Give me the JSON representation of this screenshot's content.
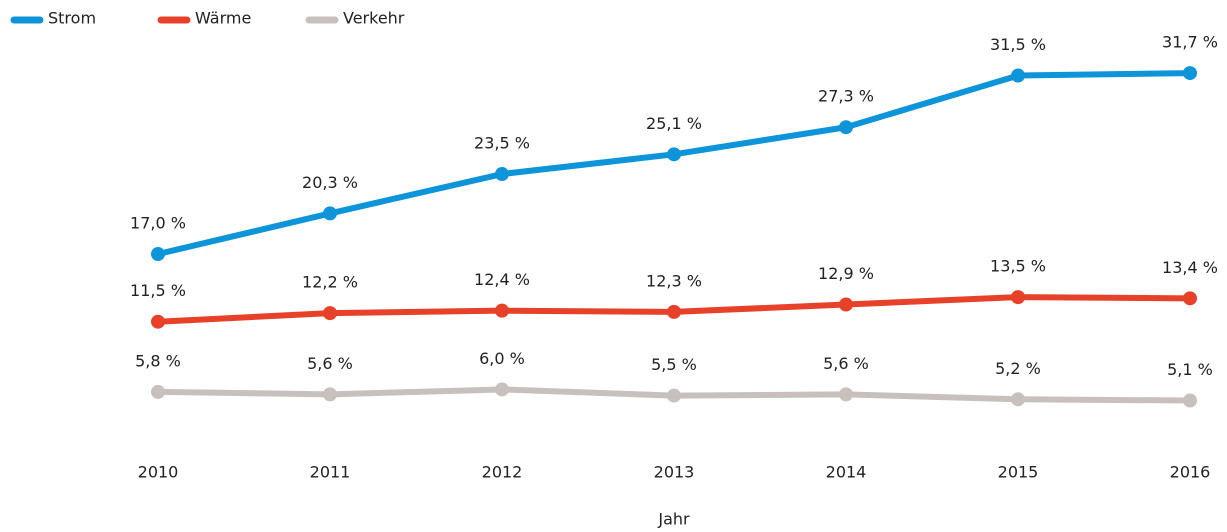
{
  "chart_data": {
    "type": "line",
    "x_label": "Jahr",
    "categories": [
      "2010",
      "2011",
      "2012",
      "2013",
      "2014",
      "2015",
      "2016"
    ],
    "series": [
      {
        "name": "Strom",
        "color": "#0d94d9",
        "values": [
          17.0,
          20.3,
          23.5,
          25.1,
          27.3,
          31.5,
          31.7
        ],
        "value_labels": [
          "17,0 %",
          "20,3 %",
          "23,5 %",
          "25,1 %",
          "27,3 %",
          "31,5 %",
          "31,7 %"
        ]
      },
      {
        "name": "Wärme",
        "color": "#e8412a",
        "values": [
          11.5,
          12.2,
          12.4,
          12.3,
          12.9,
          13.5,
          13.4
        ],
        "value_labels": [
          "11,5 %",
          "12,2 %",
          "12,4 %",
          "12,3 %",
          "12,9 %",
          "13,5 %",
          "13,4 %"
        ]
      },
      {
        "name": "Verkehr",
        "color": "#c8c0bc",
        "values": [
          5.8,
          5.6,
          6.0,
          5.5,
          5.6,
          5.2,
          5.1
        ],
        "value_labels": [
          "5,8 %",
          "5,6 %",
          "6,0 %",
          "5,5 %",
          "5,6 %",
          "5,2 %",
          "5,1 %"
        ]
      }
    ],
    "legend": "top-left"
  }
}
